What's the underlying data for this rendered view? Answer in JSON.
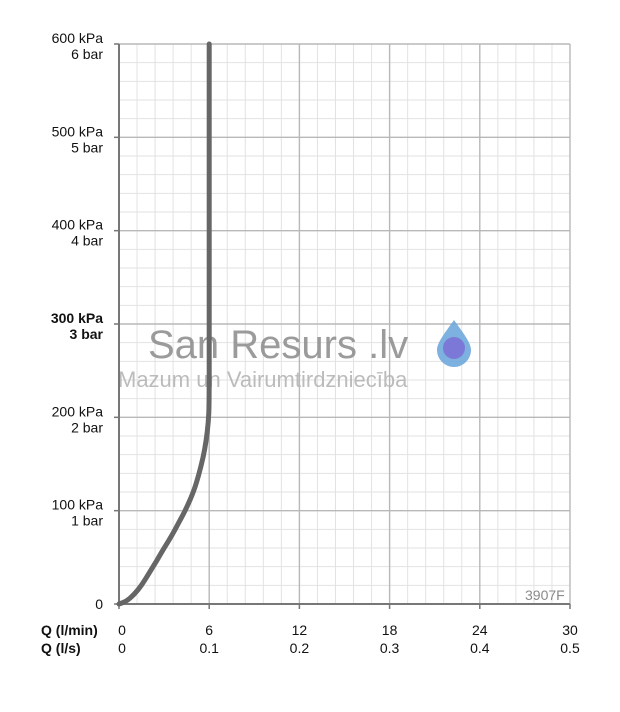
{
  "chart_data": {
    "type": "line",
    "x_unit_primary": "Q (l/min)",
    "x_unit_secondary": "Q (l/s)",
    "x_ticks_primary": [
      "0",
      "6",
      "12",
      "18",
      "24",
      "30"
    ],
    "x_ticks_secondary": [
      "0",
      "0.1",
      "0.2",
      "0.3",
      "0.4",
      "0.5"
    ],
    "xlim": [
      0,
      30
    ],
    "ylim": [
      0,
      600
    ],
    "y_ticks": [
      {
        "value": 0,
        "kpa": "0",
        "bar": "",
        "bold": false
      },
      {
        "value": 100,
        "kpa": "100 kPa",
        "bar": "1 bar",
        "bold": false
      },
      {
        "value": 200,
        "kpa": "200 kPa",
        "bar": "2 bar",
        "bold": false
      },
      {
        "value": 300,
        "kpa": "300 kPa",
        "bar": "3 bar",
        "bold": true
      },
      {
        "value": 400,
        "kpa": "400 kPa",
        "bar": "4 bar",
        "bold": false
      },
      {
        "value": 500,
        "kpa": "500 kPa",
        "bar": "5 bar",
        "bold": false
      },
      {
        "value": 600,
        "kpa": "600 kPa",
        "bar": "6 bar",
        "bold": false
      }
    ],
    "grid": true,
    "series": [
      {
        "x": [
          0,
          0.5,
          1,
          1.5,
          2,
          2.5,
          3,
          3.5,
          4,
          4.5,
          5,
          5.3,
          5.6,
          5.8,
          5.95,
          6,
          6,
          6,
          6
        ],
        "y": [
          0,
          3,
          10,
          20,
          33,
          46,
          60,
          73,
          88,
          103,
          122,
          138,
          157,
          175,
          195,
          215,
          300,
          450,
          600
        ],
        "color": "#666666"
      }
    ],
    "model_label": "3907F"
  },
  "watermark": {
    "title": "San Resurs .lv",
    "subtitle": "Mazum un Vairumtirdzniecība",
    "drop_color": "#6fa8dc",
    "drop_inner_color": "#7b6fd6"
  }
}
